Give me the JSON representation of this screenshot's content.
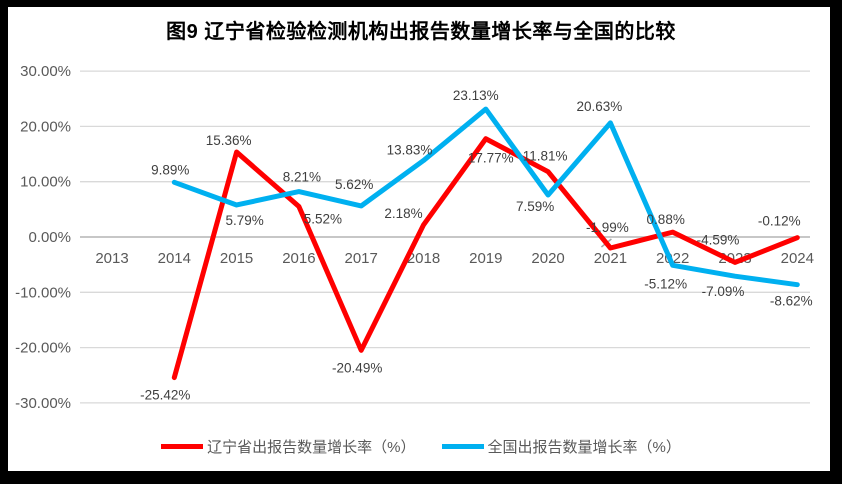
{
  "chart_data": {
    "type": "line",
    "title": "图9  辽宁省检验检测机构出报告数量增长率与全国的比较",
    "categories": [
      "2013",
      "2014",
      "2015",
      "2016",
      "2017",
      "2018",
      "2019",
      "2020",
      "2021",
      "2022",
      "2023",
      "2024"
    ],
    "y_axis": {
      "tick_values": [
        30,
        20,
        10,
        0,
        -10,
        -20,
        -30
      ],
      "tick_labels": [
        "30.00%",
        "20.00%",
        "10.00%",
        "0.00%",
        "-10.00%",
        "-20.00%",
        "-30.00%"
      ],
      "min": -30,
      "max": 30
    },
    "grid": "horizontal-only",
    "legend_position": "bottom",
    "series": [
      {
        "id": "liaoning",
        "name": "辽宁省出报告数量增长率（%）",
        "color": "#FF0000",
        "values": [
          null,
          -25.42,
          15.36,
          5.52,
          -20.49,
          2.18,
          17.77,
          11.81,
          -1.99,
          0.88,
          -4.59,
          -0.12
        ],
        "labels": [
          null,
          "-25.42%",
          "15.36%",
          "5.52%",
          "-20.49%",
          "2.18%",
          "17.77%",
          "11.81%",
          "-1.99%",
          "0.88%",
          "-4.59%",
          "-0.12%"
        ],
        "label_offsets": [
          null,
          [
            -9,
            22
          ],
          [
            -8,
            -7
          ],
          [
            24,
            17
          ],
          [
            -4,
            22
          ],
          [
            -20,
            -7
          ],
          [
            5,
            24
          ],
          [
            -3,
            -11
          ],
          [
            -3,
            -16
          ],
          [
            -7,
            -8
          ],
          [
            -17,
            -18
          ],
          [
            -18,
            -12
          ]
        ],
        "label_leader_index": 8
      },
      {
        "id": "national",
        "name": "全国出报告数量增长率（%）",
        "color": "#00B0F0",
        "values": [
          null,
          9.89,
          5.79,
          8.21,
          5.62,
          13.83,
          23.13,
          7.59,
          20.63,
          -5.12,
          -7.09,
          -8.62
        ],
        "labels": [
          null,
          "9.89%",
          "5.79%",
          "8.21%",
          "5.62%",
          "13.83%",
          "23.13%",
          "7.59%",
          "20.63%",
          "-5.12%",
          "-7.09%",
          "-8.62%"
        ],
        "label_offsets": [
          null,
          [
            -4,
            -8
          ],
          [
            8,
            20
          ],
          [
            3,
            -10
          ],
          [
            -7,
            -17
          ],
          [
            -14,
            -6
          ],
          [
            -10,
            -9
          ],
          [
            -13,
            16
          ],
          [
            -11,
            -12
          ],
          [
            -7,
            23
          ],
          [
            -12,
            20
          ],
          [
            -6,
            21
          ]
        ]
      }
    ]
  },
  "colors": {
    "background": "#FFFFFF",
    "frame": "#000000",
    "grid": "#D9D9D9",
    "zero_line": "#BFBFBF",
    "axis_text": "#595959",
    "data_label_text": "#3F3F3F",
    "leader_line": "#A6A6A6"
  }
}
